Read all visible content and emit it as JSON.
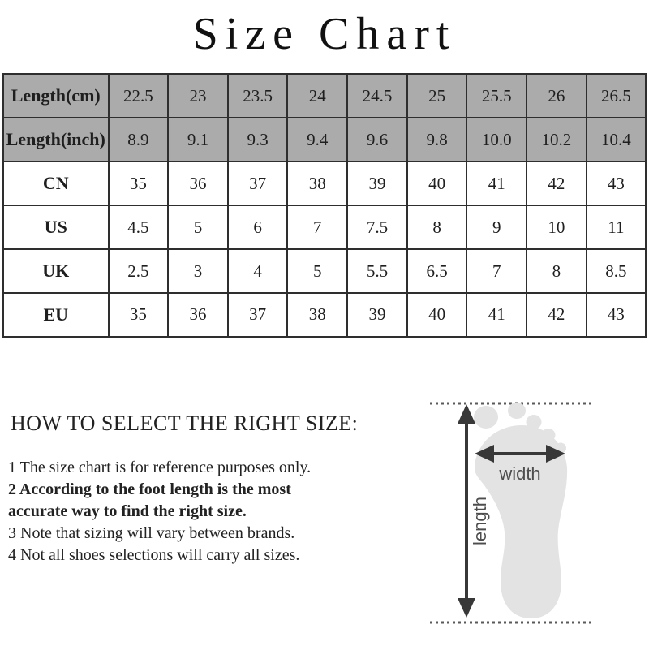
{
  "title": "Size Chart",
  "size_table": {
    "rows": [
      {
        "label": "Length(cm)",
        "shaded": true,
        "display": [
          "22.5",
          "23",
          "23.5",
          "24",
          "24.5",
          "25",
          "25.5",
          "26",
          "26.5"
        ]
      },
      {
        "label": "Length(inch)",
        "shaded": true,
        "display": [
          "8.9",
          "9.1",
          "9.3",
          "9.4",
          "9.6",
          "9.8",
          "10.0",
          "10.2",
          "10.4"
        ]
      },
      {
        "label": "CN",
        "shaded": false,
        "display": [
          "35",
          "36",
          "37",
          "38",
          "39",
          "40",
          "41",
          "42",
          "43"
        ]
      },
      {
        "label": "US",
        "shaded": false,
        "display": [
          "4.5",
          "5",
          "6",
          "7",
          "7.5",
          "8",
          "9",
          "10",
          "11"
        ]
      },
      {
        "label": "UK",
        "shaded": false,
        "display": [
          "2.5",
          "3",
          "4",
          "5",
          "5.5",
          "6.5",
          "7",
          "8",
          "8.5"
        ]
      },
      {
        "label": "EU",
        "shaded": false,
        "display": [
          "35",
          "36",
          "37",
          "38",
          "39",
          "40",
          "41",
          "42",
          "43"
        ]
      }
    ]
  },
  "chart_data": {
    "type": "table",
    "title": "Size Chart",
    "rows": [
      {
        "label": "Length(cm)",
        "values": [
          22.5,
          23,
          23.5,
          24,
          24.5,
          25,
          25.5,
          26,
          26.5
        ]
      },
      {
        "label": "Length(inch)",
        "values": [
          8.9,
          9.1,
          9.3,
          9.4,
          9.6,
          9.8,
          10.0,
          10.2,
          10.4
        ]
      },
      {
        "label": "CN",
        "values": [
          35,
          36,
          37,
          38,
          39,
          40,
          41,
          42,
          43
        ]
      },
      {
        "label": "US",
        "values": [
          4.5,
          5,
          6,
          7,
          7.5,
          8,
          9,
          10,
          11
        ]
      },
      {
        "label": "UK",
        "values": [
          2.5,
          3,
          4,
          5,
          5.5,
          6.5,
          7,
          8,
          8.5
        ]
      },
      {
        "label": "EU",
        "values": [
          35,
          36,
          37,
          38,
          39,
          40,
          41,
          42,
          43
        ]
      }
    ]
  },
  "instructions": {
    "heading": "HOW TO SELECT THE RIGHT SIZE:",
    "notes": [
      {
        "text": "1 The size chart is for reference purposes only.",
        "bold": false
      },
      {
        "text": "2 According to the foot length is the most\naccurate way to find the right size.",
        "bold": true
      },
      {
        "text": "3 Note that sizing will vary between brands.",
        "bold": false
      },
      {
        "text": "4 Not all shoes selections will carry all sizes.",
        "bold": false
      }
    ]
  },
  "diagram": {
    "width_label": "width",
    "length_label": "length"
  },
  "colors": {
    "table_shaded_bg": "#ababab",
    "table_border": "#2e2e2e",
    "foot_fill": "#e3e3e3",
    "arrow": "#383838",
    "dotted_line": "#5a5a5a",
    "diagram_label": "#4d4d4d"
  }
}
